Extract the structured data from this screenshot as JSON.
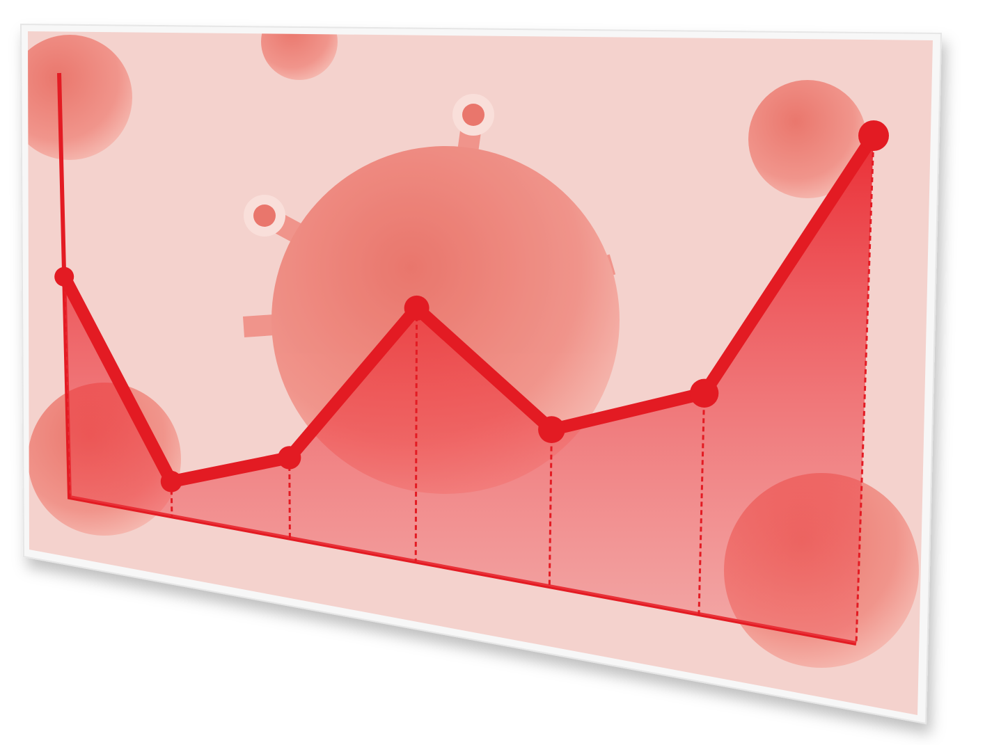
{
  "chart_data": {
    "type": "area",
    "x": [
      0,
      13,
      28,
      44,
      61,
      80,
      100
    ],
    "values": [
      52,
      8,
      18,
      55,
      33,
      45,
      100
    ],
    "xlim": [
      0,
      100
    ],
    "ylim": [
      0,
      100
    ],
    "color": "#e31b23"
  }
}
